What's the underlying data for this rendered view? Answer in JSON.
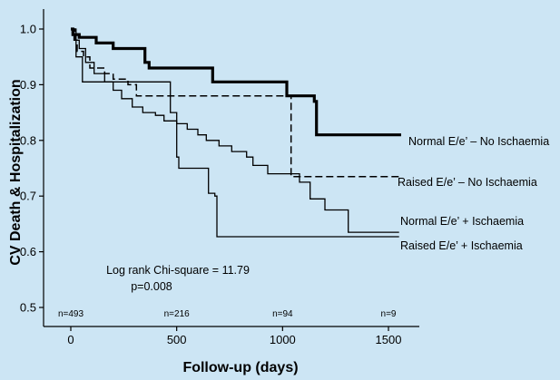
{
  "chart_data": {
    "type": "line",
    "subtype": "kaplan-meier step",
    "xlabel": "Follow-up (days)",
    "ylabel": "CV Death & Hospitalization",
    "xlim": [
      0,
      1600
    ],
    "ylim": [
      0.5,
      1.0
    ],
    "x_ticks": [
      "0",
      "500",
      "1000",
      "1500"
    ],
    "y_ticks": [
      "0.5",
      "0.6",
      "0.7",
      "0.8",
      "0.9",
      "1.0"
    ],
    "grid": false,
    "legend": "inline labels at right end of each curve",
    "at_risk": [
      {
        "x": 0,
        "label": "n=493"
      },
      {
        "x": 500,
        "label": "n=216"
      },
      {
        "x": 1000,
        "label": "n=94"
      },
      {
        "x": 1500,
        "label": "n=9"
      }
    ],
    "annotations": {
      "line1": "Log rank Chi-square = 11.79",
      "line2": "p=0.008"
    },
    "series": [
      {
        "name": "Normal E/e’ – No Ischaemia",
        "style": "thick",
        "points": [
          [
            0,
            1.0
          ],
          [
            10,
            0.99
          ],
          [
            40,
            0.985
          ],
          [
            120,
            0.975
          ],
          [
            200,
            0.965
          ],
          [
            350,
            0.94
          ],
          [
            370,
            0.93
          ],
          [
            650,
            0.93
          ],
          [
            670,
            0.905
          ],
          [
            1010,
            0.905
          ],
          [
            1020,
            0.88
          ],
          [
            1145,
            0.88
          ],
          [
            1150,
            0.87
          ],
          [
            1160,
            0.81
          ],
          [
            1560,
            0.81
          ]
        ]
      },
      {
        "name": "Raised E/e’ – No Ischaemia",
        "style": "dashed",
        "points": [
          [
            0,
            1.0
          ],
          [
            20,
            0.98
          ],
          [
            30,
            0.96
          ],
          [
            60,
            0.95
          ],
          [
            90,
            0.93
          ],
          [
            160,
            0.92
          ],
          [
            200,
            0.91
          ],
          [
            270,
            0.9
          ],
          [
            310,
            0.88
          ],
          [
            1030,
            0.88
          ],
          [
            1040,
            0.735
          ],
          [
            1550,
            0.735
          ]
        ]
      },
      {
        "name": "Normal E/e’ + Ischaemia",
        "style": "thin",
        "points": [
          [
            0,
            1.0
          ],
          [
            15,
            0.98
          ],
          [
            40,
            0.965
          ],
          [
            70,
            0.94
          ],
          [
            110,
            0.92
          ],
          [
            160,
            0.905
          ],
          [
            200,
            0.89
          ],
          [
            240,
            0.875
          ],
          [
            290,
            0.86
          ],
          [
            340,
            0.85
          ],
          [
            400,
            0.845
          ],
          [
            440,
            0.835
          ],
          [
            500,
            0.83
          ],
          [
            550,
            0.82
          ],
          [
            600,
            0.81
          ],
          [
            640,
            0.8
          ],
          [
            700,
            0.79
          ],
          [
            760,
            0.78
          ],
          [
            830,
            0.77
          ],
          [
            860,
            0.755
          ],
          [
            930,
            0.74
          ],
          [
            1080,
            0.725
          ],
          [
            1130,
            0.695
          ],
          [
            1200,
            0.675
          ],
          [
            1300,
            0.675
          ],
          [
            1310,
            0.635
          ],
          [
            1550,
            0.635
          ]
        ]
      },
      {
        "name": "Raised E/e’ + Ischaemia",
        "style": "thin",
        "points": [
          [
            0,
            1.0
          ],
          [
            25,
            0.95
          ],
          [
            55,
            0.905
          ],
          [
            460,
            0.905
          ],
          [
            470,
            0.85
          ],
          [
            500,
            0.77
          ],
          [
            510,
            0.75
          ],
          [
            640,
            0.75
          ],
          [
            650,
            0.705
          ],
          [
            680,
            0.7
          ],
          [
            690,
            0.627
          ],
          [
            1550,
            0.627
          ]
        ]
      }
    ]
  }
}
